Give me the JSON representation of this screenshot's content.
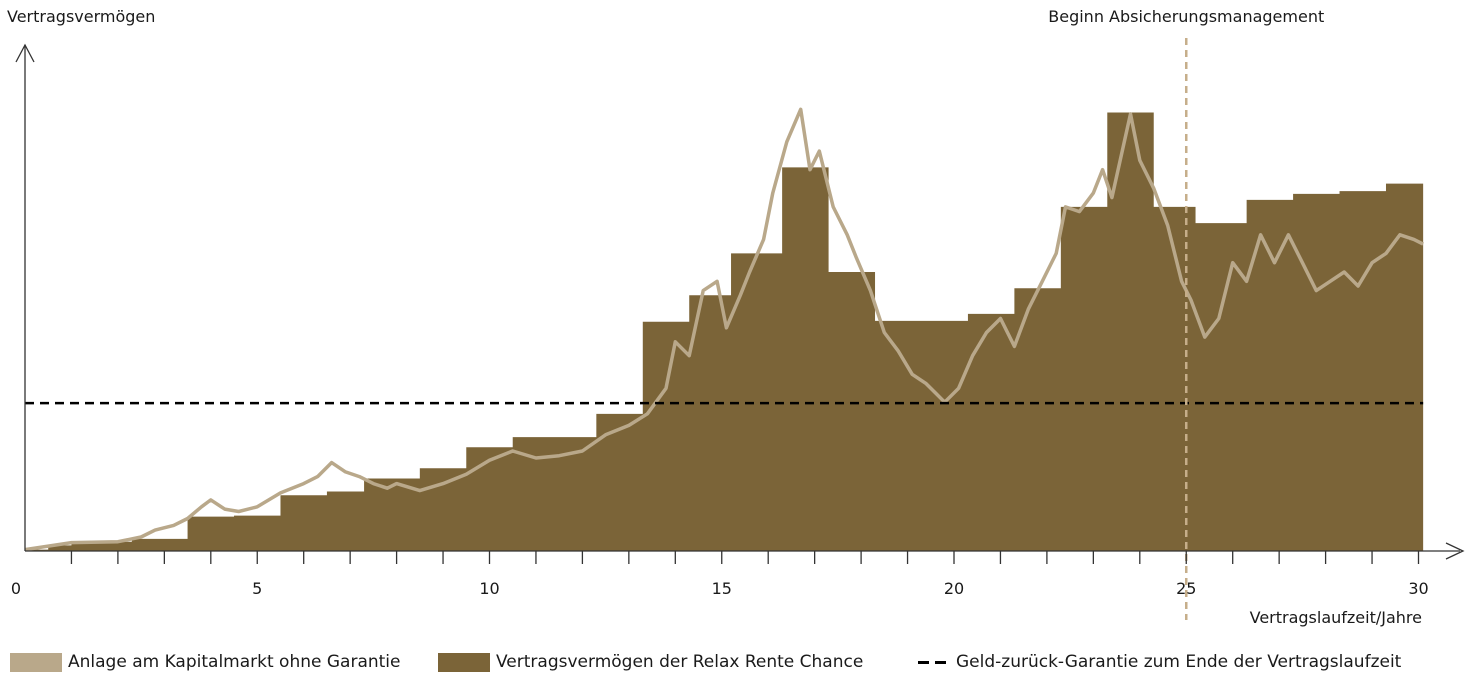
{
  "chart_data": {
    "type": "area",
    "ylabel": "Vertragsvermögen",
    "xlabel": "Vertragslaufzeit/Jahre",
    "xlim": [
      0,
      31
    ],
    "ylim": [
      0,
      100
    ],
    "x_ticks": [
      0,
      5,
      10,
      15,
      20,
      25,
      30
    ],
    "annotation": {
      "label": "Beginn Absicherungsmanagement",
      "x": 25
    },
    "guarantee_level": 31.8,
    "colors": {
      "market": "#b9a88a",
      "contract": "#7b6438",
      "guarantee": "#000000",
      "marker": "#c6ae8a",
      "axis": "#333333"
    },
    "legend": [
      "Anlage am Kapitalmarkt ohne Garantie",
      "Vertragsvermögen der Relax Rente Chance",
      "Geld-zurück-Garantie zum Ende der Vertragslaufzeit"
    ],
    "series": [
      {
        "name": "Vertragsvermögen der Relax Rente Chance",
        "type": "step",
        "steps": [
          [
            0,
            0.3
          ],
          [
            0.5,
            1.2
          ],
          [
            1,
            1.8
          ],
          [
            2,
            2.0
          ],
          [
            2.3,
            2.6
          ],
          [
            3.5,
            7.4
          ],
          [
            4.5,
            7.6
          ],
          [
            5.5,
            12.0
          ],
          [
            6.5,
            12.8
          ],
          [
            7.3,
            15.6
          ],
          [
            8.5,
            17.8
          ],
          [
            9.5,
            22.3
          ],
          [
            10.5,
            24.5
          ],
          [
            12.3,
            29.5
          ],
          [
            13.3,
            49.3
          ],
          [
            14.3,
            55.0
          ],
          [
            15.2,
            64.0
          ],
          [
            16.3,
            82.5
          ],
          [
            17.3,
            60.0
          ],
          [
            18.3,
            49.5
          ],
          [
            20.3,
            51.0
          ],
          [
            21.3,
            56.5
          ],
          [
            22.3,
            74.0
          ],
          [
            23.3,
            94.3
          ],
          [
            24.3,
            74.0
          ],
          [
            25.2,
            70.5
          ],
          [
            26.3,
            75.5
          ],
          [
            27.3,
            76.8
          ],
          [
            28.3,
            77.4
          ],
          [
            29.3,
            79.0
          ],
          [
            30.1,
            0
          ]
        ]
      },
      {
        "name": "Anlage am Kapitalmarkt ohne Garantie",
        "type": "line",
        "points": [
          [
            0,
            0.3
          ],
          [
            1,
            1.8
          ],
          [
            2,
            2.0
          ],
          [
            2.5,
            3.0
          ],
          [
            2.8,
            4.5
          ],
          [
            3.2,
            5.5
          ],
          [
            3.5,
            7.0
          ],
          [
            3.8,
            9.5
          ],
          [
            4.0,
            11.0
          ],
          [
            4.3,
            9.0
          ],
          [
            4.6,
            8.5
          ],
          [
            5.0,
            9.5
          ],
          [
            5.5,
            12.5
          ],
          [
            6.0,
            14.5
          ],
          [
            6.3,
            16.0
          ],
          [
            6.6,
            19.0
          ],
          [
            6.9,
            17.0
          ],
          [
            7.2,
            16.0
          ],
          [
            7.5,
            14.5
          ],
          [
            7.8,
            13.5
          ],
          [
            8.0,
            14.5
          ],
          [
            8.5,
            13.0
          ],
          [
            9.0,
            14.5
          ],
          [
            9.5,
            16.5
          ],
          [
            10.0,
            19.5
          ],
          [
            10.5,
            21.5
          ],
          [
            11.0,
            20.0
          ],
          [
            11.5,
            20.5
          ],
          [
            12.0,
            21.5
          ],
          [
            12.5,
            25.0
          ],
          [
            13.0,
            27.0
          ],
          [
            13.4,
            29.5
          ],
          [
            13.8,
            35.0
          ],
          [
            14.0,
            45.0
          ],
          [
            14.3,
            42.0
          ],
          [
            14.6,
            56.0
          ],
          [
            14.9,
            58.0
          ],
          [
            15.1,
            48.0
          ],
          [
            15.4,
            55.0
          ],
          [
            15.6,
            60.0
          ],
          [
            15.9,
            67.0
          ],
          [
            16.1,
            77.0
          ],
          [
            16.4,
            88.0
          ],
          [
            16.7,
            95.0
          ],
          [
            16.9,
            82.0
          ],
          [
            17.1,
            86.0
          ],
          [
            17.4,
            74.0
          ],
          [
            17.7,
            68.0
          ],
          [
            17.9,
            63.0
          ],
          [
            18.2,
            56.0
          ],
          [
            18.5,
            47.0
          ],
          [
            18.8,
            43.0
          ],
          [
            19.1,
            38.0
          ],
          [
            19.4,
            36.0
          ],
          [
            19.6,
            34.0
          ],
          [
            19.8,
            32.0
          ],
          [
            20.1,
            35.0
          ],
          [
            20.4,
            42.0
          ],
          [
            20.7,
            47.0
          ],
          [
            21.0,
            50.0
          ],
          [
            21.3,
            44.0
          ],
          [
            21.6,
            52.0
          ],
          [
            21.9,
            58.0
          ],
          [
            22.2,
            64.0
          ],
          [
            22.4,
            74.0
          ],
          [
            22.7,
            73.0
          ],
          [
            23.0,
            77.0
          ],
          [
            23.2,
            82.0
          ],
          [
            23.4,
            76.0
          ],
          [
            23.6,
            85.0
          ],
          [
            23.8,
            94.0
          ],
          [
            24.0,
            84.0
          ],
          [
            24.3,
            78.0
          ],
          [
            24.6,
            70.0
          ],
          [
            24.9,
            58.0
          ],
          [
            25.1,
            54.0
          ],
          [
            25.4,
            46.0
          ],
          [
            25.7,
            50.0
          ],
          [
            26.0,
            62.0
          ],
          [
            26.3,
            58.0
          ],
          [
            26.6,
            68.0
          ],
          [
            26.9,
            62.0
          ],
          [
            27.2,
            68.0
          ],
          [
            27.5,
            62.0
          ],
          [
            27.8,
            56.0
          ],
          [
            28.1,
            58.0
          ],
          [
            28.4,
            60.0
          ],
          [
            28.7,
            57.0
          ],
          [
            29.0,
            62.0
          ],
          [
            29.3,
            64.0
          ],
          [
            29.6,
            68.0
          ],
          [
            29.9,
            67.0
          ],
          [
            30.1,
            66.0
          ]
        ]
      }
    ]
  }
}
